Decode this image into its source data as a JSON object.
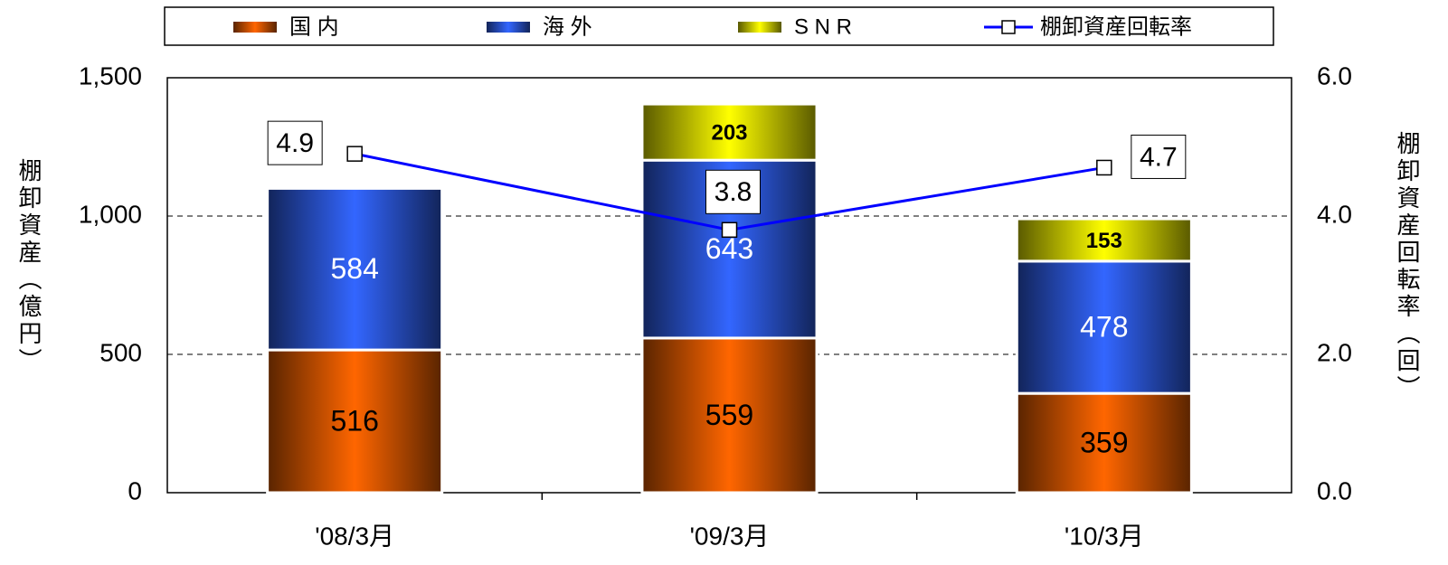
{
  "chart_data": {
    "type": "bar",
    "stacked": true,
    "categories": [
      "'08/3月",
      "'09/3月",
      "'10/3月"
    ],
    "series": [
      {
        "name": "国 内",
        "color": "#ff6600",
        "text_color": "#000000",
        "values": [
          516,
          559,
          359
        ]
      },
      {
        "name": "海 外",
        "color": "#3366ff",
        "text_color": "#ffffff",
        "values": [
          584,
          643,
          478
        ]
      },
      {
        "name": "S N R",
        "color": "#ffff00",
        "text_color": "#000000",
        "values": [
          null,
          203,
          153
        ]
      },
      {
        "name": "棚卸資産回転率",
        "type": "line",
        "axis": "y2",
        "color": "#0000ff",
        "values": [
          4.9,
          3.8,
          4.7
        ]
      }
    ],
    "ylabel": "棚卸資産（億円）",
    "y2label": "棚卸資産回転率（回）",
    "ylim": [
      0,
      1500
    ],
    "yticks": [
      0,
      500,
      {
        "value": 1000,
        "label": "1,000"
      },
      {
        "value": 1500,
        "label": "1,500"
      }
    ],
    "y2lim": [
      0,
      6
    ],
    "y2ticks": [
      {
        "value": 0,
        "label": "0.0"
      },
      {
        "value": 2,
        "label": "2.0"
      },
      {
        "value": 4,
        "label": "4.0"
      },
      {
        "value": 6,
        "label": "6.0"
      }
    ],
    "grid": true,
    "legend": "top"
  }
}
